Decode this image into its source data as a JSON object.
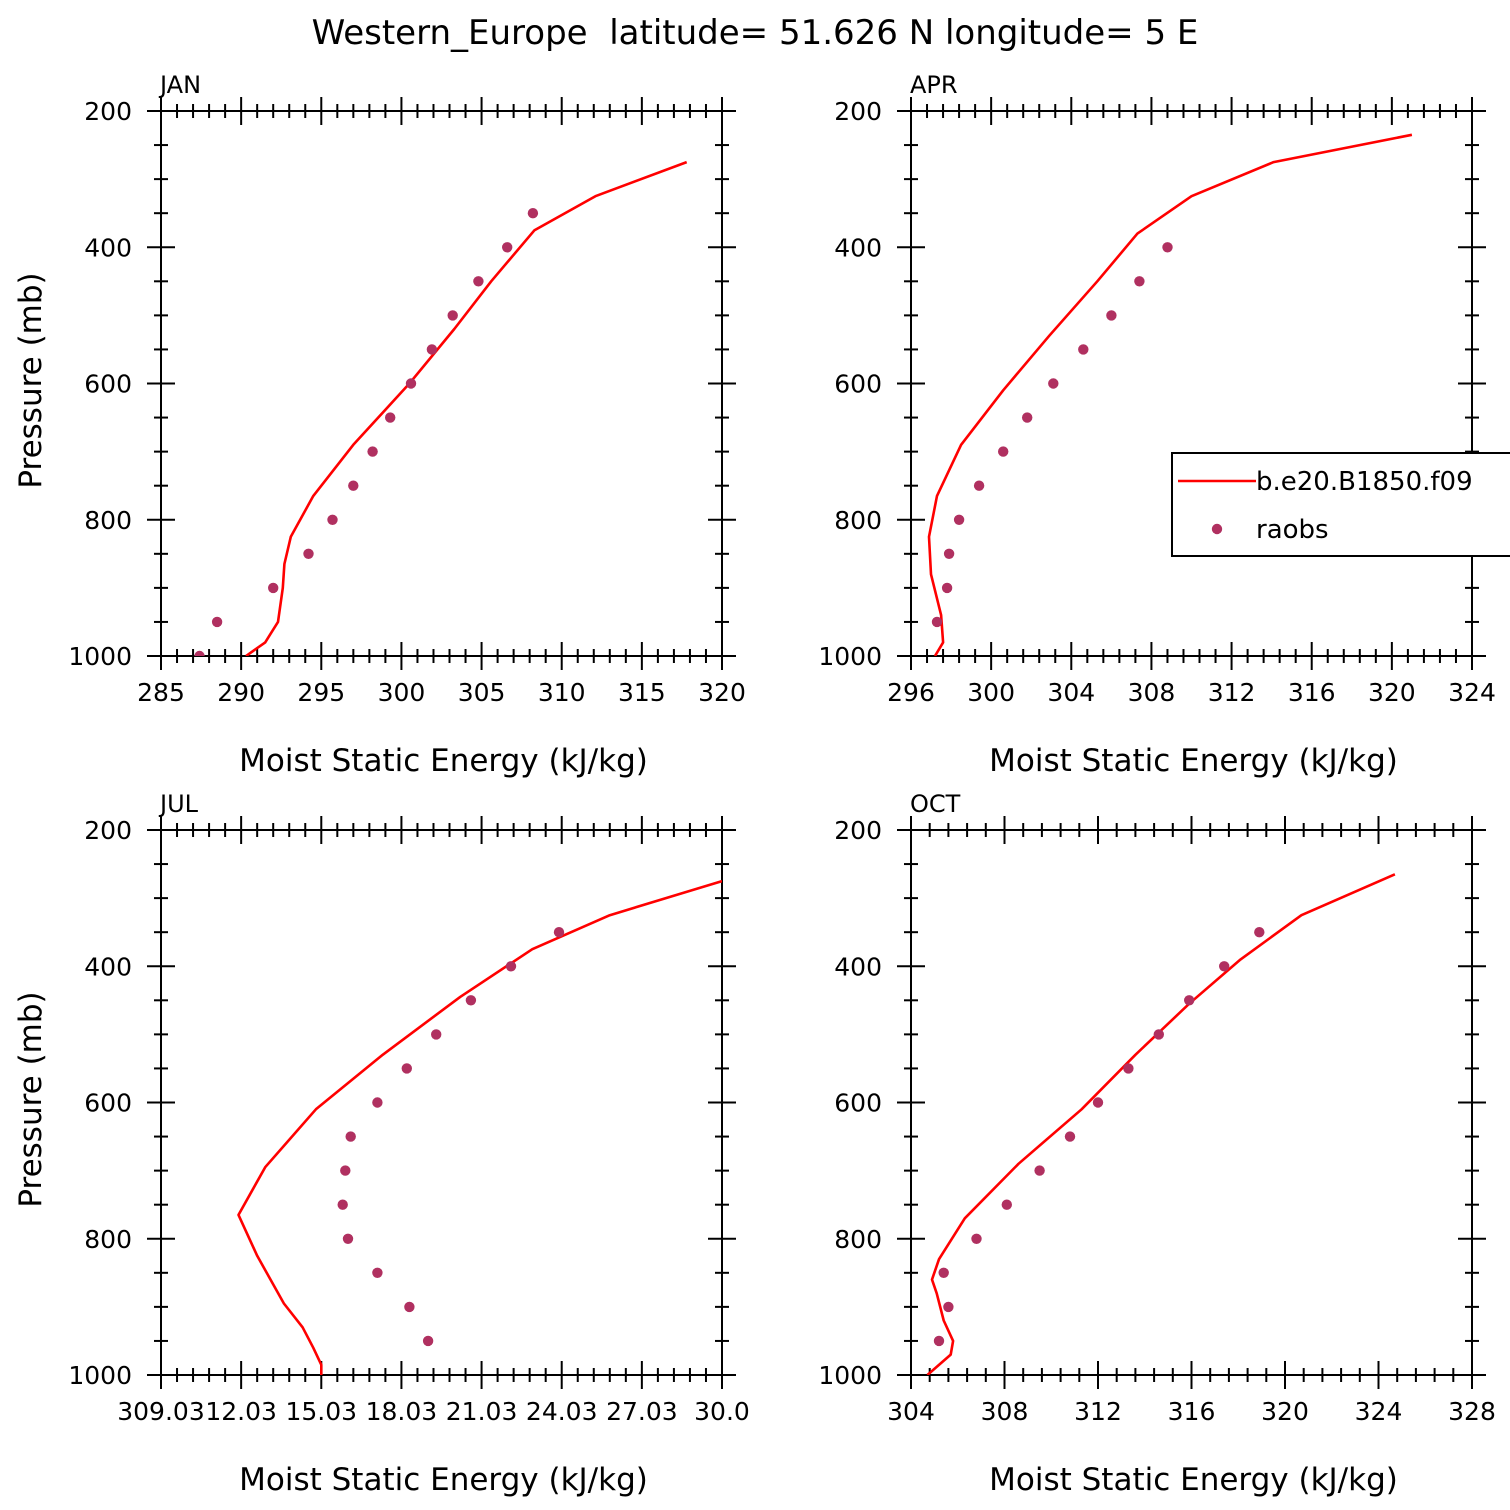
{
  "figure": {
    "title": "Western_Europe  latitude= 51.626 N longitude= 5 E"
  },
  "colors": {
    "model": "#ff0000",
    "obs": "#b03060"
  },
  "legend": {
    "panel": "APR",
    "placement": "right",
    "entries": [
      {
        "label": "b.e20.B1850.f09",
        "kind": "line",
        "color": "#ff0000"
      },
      {
        "label": "raobs",
        "kind": "marker",
        "color": "#b03060"
      }
    ]
  },
  "chart_data": [
    {
      "type": "line",
      "title": "JAN",
      "xlabel": "Moist Static Energy (kJ/kg)",
      "ylabel": "Pressure (mb)",
      "xlim": [
        285,
        320
      ],
      "ylim": [
        1000,
        200
      ],
      "xticks": [
        "285",
        "290",
        "295",
        "300",
        "305",
        "310",
        "315",
        "320"
      ],
      "yticks": [
        "200",
        "400",
        "600",
        "800",
        "1000"
      ],
      "series": [
        {
          "name": "b.e20.B1850.f09",
          "kind": "line",
          "x": [
            290.3,
            291.5,
            292.3,
            292.6,
            292.7,
            293.1,
            294.5,
            297.0,
            300.5,
            303.3,
            305.6,
            308.3,
            312.1,
            317.8
          ],
          "y": [
            1000,
            980,
            950,
            900,
            865,
            825,
            765,
            690,
            600,
            520,
            450,
            375,
            325,
            275
          ]
        },
        {
          "name": "raobs",
          "kind": "scatter",
          "x": [
            287.4,
            288.5,
            292.0,
            294.2,
            295.7,
            297.0,
            298.2,
            299.3,
            300.6,
            301.9,
            303.2,
            304.8,
            306.6,
            308.2
          ],
          "y": [
            1000,
            950,
            900,
            850,
            800,
            750,
            700,
            650,
            600,
            550,
            500,
            450,
            400,
            350
          ]
        }
      ]
    },
    {
      "type": "line",
      "title": "APR",
      "xlabel": "Moist Static Energy (kJ/kg)",
      "ylabel": "",
      "xlim": [
        296,
        324
      ],
      "ylim": [
        1000,
        200
      ],
      "xticks": [
        "296",
        "300",
        "304",
        "308",
        "312",
        "316",
        "320",
        "324"
      ],
      "yticks": [
        "200",
        "400",
        "600",
        "800",
        "1000"
      ],
      "series": [
        {
          "name": "b.e20.B1850.f09",
          "kind": "line",
          "x": [
            297.2,
            297.6,
            297.5,
            297.0,
            296.9,
            297.3,
            298.5,
            300.6,
            302.9,
            305.3,
            307.3,
            310.0,
            314.1,
            321.0
          ],
          "y": [
            1000,
            980,
            940,
            880,
            825,
            765,
            690,
            610,
            530,
            450,
            380,
            325,
            275,
            235
          ]
        },
        {
          "name": "raobs",
          "kind": "scatter",
          "x": [
            297.3,
            297.8,
            297.9,
            298.4,
            299.4,
            300.6,
            301.8,
            303.1,
            304.6,
            306.0,
            307.4,
            308.8
          ],
          "y": [
            950,
            900,
            850,
            800,
            750,
            700,
            650,
            600,
            550,
            500,
            450,
            400
          ]
        }
      ]
    },
    {
      "type": "line",
      "title": "JUL",
      "xlabel": "Moist Static Energy (kJ/kg)",
      "ylabel": "Pressure (mb)",
      "xlim": [
        309.0,
        330.0
      ],
      "ylim": [
        1000,
        200
      ],
      "xticks": [
        "309.03",
        "12.03",
        "15.03",
        "18.03",
        "21.03",
        "24.03",
        "27.03",
        "30.0"
      ],
      "yticks": [
        "200",
        "400",
        "600",
        "800",
        "1000"
      ],
      "series": [
        {
          "name": "b.e20.B1850.f09",
          "kind": "line",
          "x": [
            315.0,
            315.0,
            314.7,
            314.3,
            313.6,
            312.6,
            311.9,
            312.9,
            314.8,
            317.3,
            320.2,
            322.9,
            325.8,
            330.0
          ],
          "y": [
            1000,
            985,
            960,
            930,
            895,
            825,
            765,
            695,
            610,
            530,
            445,
            375,
            325,
            275
          ]
        },
        {
          "name": "raobs",
          "kind": "scatter",
          "x": [
            319.0,
            318.3,
            317.1,
            316.0,
            315.8,
            315.9,
            316.1,
            317.1,
            318.2,
            319.3,
            320.6,
            322.1,
            323.9
          ],
          "y": [
            950,
            900,
            850,
            800,
            750,
            700,
            650,
            600,
            550,
            500,
            450,
            400,
            350
          ]
        }
      ]
    },
    {
      "type": "line",
      "title": "OCT",
      "xlabel": "Moist Static Energy (kJ/kg)",
      "ylabel": "",
      "xlim": [
        304,
        328
      ],
      "ylim": [
        1000,
        200
      ],
      "xticks": [
        "304",
        "308",
        "312",
        "316",
        "320",
        "324",
        "328"
      ],
      "yticks": [
        "200",
        "400",
        "600",
        "800",
        "1000"
      ],
      "series": [
        {
          "name": "b.e20.B1850.f09",
          "kind": "line",
          "x": [
            304.7,
            305.7,
            305.8,
            305.4,
            305.1,
            304.9,
            305.2,
            306.3,
            308.6,
            311.3,
            313.6,
            315.9,
            318.1,
            320.7,
            324.7
          ],
          "y": [
            1000,
            970,
            950,
            920,
            880,
            860,
            830,
            770,
            690,
            610,
            530,
            455,
            390,
            325,
            265
          ]
        },
        {
          "name": "raobs",
          "kind": "scatter",
          "x": [
            305.2,
            305.6,
            305.4,
            306.8,
            308.1,
            309.5,
            310.8,
            312.0,
            313.3,
            314.6,
            315.9,
            317.4,
            318.9
          ],
          "y": [
            950,
            900,
            850,
            800,
            750,
            700,
            650,
            600,
            550,
            500,
            450,
            400,
            350
          ]
        }
      ]
    }
  ]
}
